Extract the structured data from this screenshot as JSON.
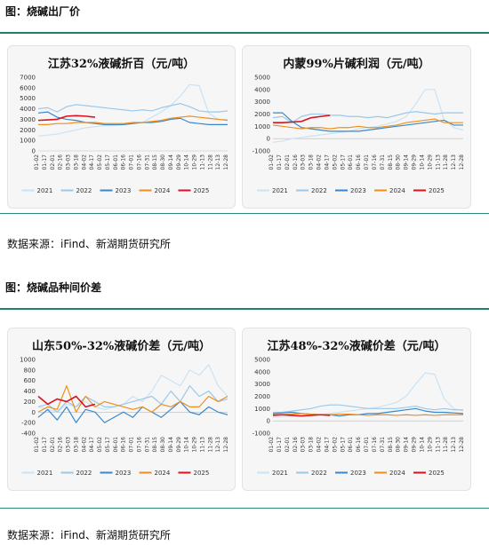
{
  "figure1": {
    "title": "图：烧碱出厂价",
    "source": "数据来源：iFind、新湖期货研究所"
  },
  "figure2": {
    "title": "图：烧碱品种间价差",
    "source": "数据来源：iFind、新湖期货研究所"
  },
  "colors": {
    "2021": "#c9e3f5",
    "2022": "#9cc8ea",
    "2023": "#3b87cc",
    "2024": "#ee8f1d",
    "2025": "#d8121f",
    "rule": "#1f7f6e"
  },
  "x_ticks": [
    "01-02",
    "01-17",
    "02-01",
    "02-16",
    "03-03",
    "03-18",
    "04-02",
    "04-17",
    "05-02",
    "05-17",
    "06-01",
    "06-16",
    "07-01",
    "07-16",
    "07-31",
    "08-15",
    "08-30",
    "09-14",
    "09-29",
    "10-14",
    "10-29",
    "11-13",
    "11-28",
    "12-13",
    "12-28"
  ],
  "chart_data": [
    {
      "type": "line",
      "title": "江苏32%液碱折百（元/吨）",
      "yticks": [
        "0",
        "1000",
        "2000",
        "3000",
        "4000",
        "5000",
        "6000",
        "7000"
      ],
      "ylim": [
        0,
        7000
      ],
      "legend": [
        "2021",
        "2022",
        "2023",
        "2024",
        "2025"
      ],
      "x_frac": [
        0,
        0.05,
        0.1,
        0.15,
        0.2,
        0.25,
        0.3,
        0.35,
        0.4,
        0.45,
        0.5,
        0.55,
        0.6,
        0.65,
        0.7,
        0.75,
        0.8,
        0.85,
        0.9,
        0.95,
        1.0
      ],
      "series": [
        {
          "name": "2021",
          "values": [
            1400,
            1500,
            1600,
            1800,
            2000,
            2200,
            2300,
            2400,
            2400,
            2500,
            2600,
            2700,
            3200,
            3700,
            4300,
            5200,
            6300,
            6200,
            3600,
            3000,
            3000
          ]
        },
        {
          "name": "2022",
          "values": [
            4000,
            4100,
            3700,
            4200,
            4400,
            4300,
            4200,
            4100,
            4000,
            3900,
            3800,
            3900,
            3800,
            4100,
            4300,
            4500,
            4200,
            3800,
            3700,
            3700,
            3800
          ]
        },
        {
          "name": "2023",
          "values": [
            3600,
            3700,
            3200,
            3000,
            2900,
            2700,
            2600,
            2500,
            2500,
            2500,
            2600,
            2700,
            2700,
            2800,
            3000,
            3100,
            2700,
            2600,
            2500,
            2500,
            2500
          ]
        },
        {
          "name": "2024",
          "values": [
            2500,
            2500,
            2600,
            2600,
            2700,
            2700,
            2700,
            2600,
            2600,
            2600,
            2700,
            2700,
            2800,
            2900,
            3100,
            3200,
            3300,
            3200,
            3100,
            3000,
            2900
          ]
        },
        {
          "name": "2025",
          "values": [
            2900,
            2950,
            3000,
            3300,
            3350,
            3300,
            3200
          ]
        }
      ]
    },
    {
      "type": "line",
      "title": "内蒙99%片碱利润（元/吨）",
      "yticks": [
        "-1000",
        "0",
        "1000",
        "2000",
        "3000",
        "4000",
        "5000"
      ],
      "ylim": [
        -1000,
        5000
      ],
      "legend": [
        "2021",
        "2022",
        "2023",
        "2024",
        "2025"
      ],
      "x_frac": [
        0,
        0.05,
        0.1,
        0.15,
        0.2,
        0.25,
        0.3,
        0.35,
        0.4,
        0.45,
        0.5,
        0.55,
        0.6,
        0.65,
        0.7,
        0.75,
        0.8,
        0.85,
        0.9,
        0.95,
        1.0
      ],
      "series": [
        {
          "name": "2021",
          "values": [
            -300,
            -200,
            0,
            100,
            200,
            300,
            400,
            500,
            600,
            800,
            900,
            1000,
            1200,
            1400,
            1800,
            2800,
            4000,
            4000,
            1500,
            900,
            700
          ]
        },
        {
          "name": "2022",
          "values": [
            1700,
            1800,
            1300,
            1800,
            2000,
            2000,
            1900,
            1900,
            1800,
            1800,
            1700,
            1800,
            1700,
            1900,
            2100,
            2200,
            2100,
            2000,
            2100,
            2100,
            2100
          ]
        },
        {
          "name": "2023",
          "values": [
            2100,
            2100,
            1400,
            900,
            800,
            700,
            600,
            600,
            600,
            600,
            700,
            800,
            900,
            1000,
            1100,
            1200,
            1300,
            1400,
            1500,
            1100,
            1100
          ]
        },
        {
          "name": "2024",
          "values": [
            1100,
            1000,
            900,
            800,
            900,
            900,
            800,
            900,
            900,
            1000,
            900,
            900,
            1000,
            1100,
            1300,
            1400,
            1500,
            1600,
            1300,
            1300,
            1300
          ]
        },
        {
          "name": "2025",
          "values": [
            1300,
            1300,
            1350,
            1400,
            1700,
            1800,
            1900
          ]
        }
      ]
    },
    {
      "type": "line",
      "title": "山东50%-32%液碱价差（元/吨）",
      "yticks": [
        "-400",
        "-200",
        "0",
        "200",
        "400",
        "600",
        "800",
        "1000"
      ],
      "ylim": [
        -400,
        1000
      ],
      "legend": [
        "2021",
        "2022",
        "2023",
        "2024",
        "2025"
      ],
      "x_frac": [
        0,
        0.05,
        0.1,
        0.15,
        0.2,
        0.25,
        0.3,
        0.35,
        0.4,
        0.45,
        0.5,
        0.55,
        0.6,
        0.65,
        0.7,
        0.75,
        0.8,
        0.85,
        0.9,
        0.95,
        1.0
      ],
      "series": [
        {
          "name": "2021",
          "values": [
            100,
            50,
            0,
            150,
            100,
            200,
            100,
            50,
            100,
            150,
            300,
            200,
            400,
            700,
            600,
            500,
            800,
            700,
            900,
            500,
            300
          ]
        },
        {
          "name": "2022",
          "values": [
            100,
            150,
            0,
            200,
            100,
            300,
            200,
            100,
            100,
            150,
            200,
            250,
            300,
            150,
            400,
            200,
            500,
            300,
            400,
            200,
            250
          ]
        },
        {
          "name": "2023",
          "values": [
            -100,
            50,
            -150,
            100,
            -200,
            50,
            0,
            -200,
            -100,
            0,
            -100,
            100,
            0,
            -100,
            50,
            200,
            0,
            -50,
            100,
            0,
            -50
          ]
        },
        {
          "name": "2024",
          "values": [
            0,
            100,
            50,
            500,
            0,
            300,
            100,
            200,
            150,
            100,
            50,
            100,
            0,
            150,
            100,
            200,
            100,
            100,
            300,
            200,
            300
          ]
        },
        {
          "name": "2025",
          "values": [
            300,
            150,
            250,
            200,
            300,
            100,
            150
          ]
        }
      ]
    },
    {
      "type": "line",
      "title": "江苏48%-32%液碱价差（元/吨）",
      "yticks": [
        "-1000",
        "0",
        "1000",
        "2000",
        "3000",
        "4000",
        "5000"
      ],
      "ylim": [
        -1000,
        5000
      ],
      "legend": [
        "2021",
        "2022",
        "2023",
        "2024",
        "2025"
      ],
      "x_frac": [
        0,
        0.05,
        0.1,
        0.15,
        0.2,
        0.25,
        0.3,
        0.35,
        0.4,
        0.45,
        0.5,
        0.55,
        0.6,
        0.65,
        0.7,
        0.75,
        0.8,
        0.85,
        0.9,
        0.95,
        1.0
      ],
      "series": [
        {
          "name": "2021",
          "values": [
            300,
            350,
            400,
            400,
            500,
            500,
            600,
            700,
            800,
            900,
            1000,
            1100,
            1300,
            1500,
            2000,
            3000,
            3900,
            3800,
            1800,
            1000,
            800
          ]
        },
        {
          "name": "2022",
          "values": [
            700,
            700,
            800,
            900,
            1000,
            1200,
            1300,
            1300,
            1200,
            1100,
            1000,
            1000,
            1000,
            1000,
            1100,
            1200,
            1000,
            900,
            1000,
            900,
            900
          ]
        },
        {
          "name": "2023",
          "values": [
            600,
            650,
            700,
            600,
            550,
            500,
            500,
            400,
            500,
            500,
            600,
            600,
            700,
            800,
            900,
            1000,
            800,
            700,
            700,
            650,
            600
          ]
        },
        {
          "name": "2024",
          "values": [
            500,
            500,
            550,
            600,
            550,
            500,
            500,
            550,
            550,
            500,
            450,
            500,
            500,
            450,
            500,
            450,
            500,
            450,
            500,
            500,
            500
          ]
        },
        {
          "name": "2025",
          "values": [
            450,
            500,
            450,
            400,
            450,
            500,
            450
          ]
        }
      ]
    }
  ]
}
